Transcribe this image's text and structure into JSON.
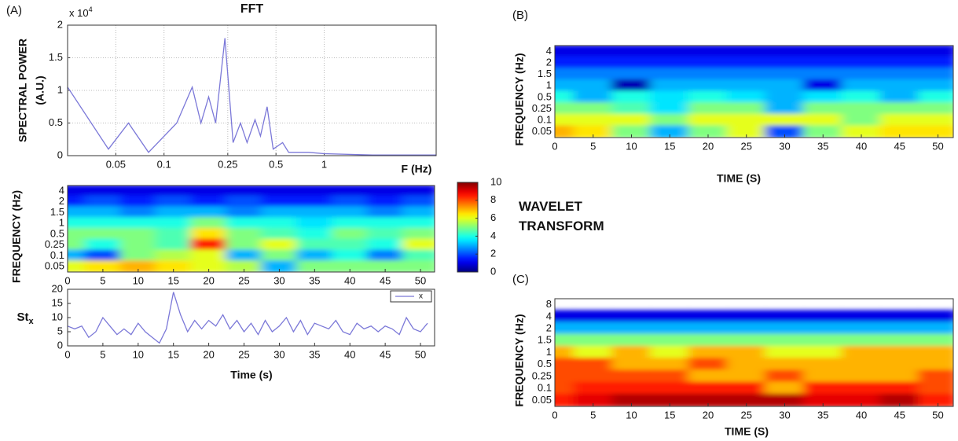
{
  "panels": [
    "(A)",
    "(B)",
    "(C)"
  ],
  "chart_data": [
    {
      "type": "line",
      "title": "FFT",
      "ylabel": [
        "SPECTRAL POWER",
        "(A.U.)"
      ],
      "y_multiplier": "x 10",
      "y_multiplier_exp": "4",
      "xlabel": "F (Hz)",
      "xscale": "log",
      "grid": true,
      "color": "#7b78d8",
      "x": [
        0.025,
        0.045,
        0.06,
        0.08,
        0.12,
        0.15,
        0.17,
        0.19,
        0.21,
        0.24,
        0.27,
        0.3,
        0.33,
        0.37,
        0.4,
        0.44,
        0.48,
        0.55,
        0.6,
        0.8,
        1,
        2,
        5
      ],
      "values": [
        1.05,
        0.1,
        0.5,
        0.05,
        0.5,
        1.05,
        0.5,
        0.9,
        0.5,
        1.8,
        0.2,
        0.5,
        0.2,
        0.55,
        0.3,
        0.75,
        0.1,
        0.2,
        0.05,
        0.05,
        0.03,
        0.01,
        0.01
      ],
      "xlim": [
        0.025,
        5
      ],
      "xticks": [
        0.05,
        0.1,
        0.25,
        0.5,
        1
      ],
      "ylim": [
        0,
        2
      ],
      "yticks": [
        0,
        0.5,
        1,
        1.5,
        2
      ]
    },
    {
      "type": "heatmap",
      "ylabel": "FREQUENCY (Hz)",
      "rows": [
        4,
        2,
        1.5,
        1,
        0.5,
        0.25,
        0.1,
        0.05
      ],
      "x": [
        0,
        5,
        10,
        15,
        20,
        25,
        30,
        35,
        40,
        45,
        50
      ],
      "z": [
        [
          1,
          1,
          1,
          1,
          1,
          1,
          1,
          1,
          1,
          1,
          1
        ],
        [
          1.5,
          2,
          1.5,
          2,
          1.5,
          2,
          1.5,
          1.5,
          2,
          1.5,
          2
        ],
        [
          3,
          3,
          2.5,
          3,
          3,
          2.5,
          3,
          3,
          3,
          2.5,
          3
        ],
        [
          4,
          4,
          4,
          4,
          5,
          4,
          4,
          3.5,
          4,
          4,
          4
        ],
        [
          5,
          5,
          5,
          4.5,
          6.5,
          5,
          4.5,
          4,
          5,
          4.5,
          5
        ],
        [
          5,
          4,
          5,
          4.5,
          8.5,
          5,
          6,
          4.5,
          4.5,
          4,
          6
        ],
        [
          3,
          2,
          5,
          5.5,
          6,
          3,
          5,
          3,
          4,
          2.5,
          4.5
        ],
        [
          6,
          6.5,
          7,
          6.5,
          6,
          5.5,
          3,
          5,
          5,
          5,
          5
        ]
      ],
      "xlim": [
        0,
        52
      ],
      "xticks": [
        0,
        5,
        10,
        15,
        20,
        25,
        30,
        35,
        40,
        45,
        50
      ]
    },
    {
      "type": "colorbar",
      "title": "WAVELET TRANSFORM",
      "colormap": "jet",
      "lim": [
        0,
        10
      ],
      "ticks": [
        0,
        2,
        4,
        6,
        8,
        10
      ]
    },
    {
      "type": "line",
      "ylabel": "St",
      "ylabel_sub": "x",
      "xlabel": "Time (s)",
      "legend": "upper right",
      "x": [
        0,
        1,
        2,
        3,
        4,
        5,
        6,
        7,
        8,
        9,
        10,
        11,
        12,
        13,
        14,
        15,
        16,
        17,
        18,
        19,
        20,
        21,
        22,
        23,
        24,
        25,
        26,
        27,
        28,
        29,
        30,
        31,
        32,
        33,
        34,
        35,
        36,
        37,
        38,
        39,
        40,
        41,
        42,
        43,
        44,
        45,
        46,
        47,
        48,
        49,
        50,
        51
      ],
      "series": [
        {
          "name": "x",
          "color": "#7b78d8",
          "values": [
            7,
            6,
            7,
            3,
            5,
            10,
            7,
            4,
            6,
            4,
            8,
            5,
            3,
            1,
            6,
            19,
            11,
            5,
            9,
            6,
            9,
            7,
            11,
            6,
            9,
            5,
            8,
            4,
            9,
            5,
            7,
            10,
            5,
            9,
            4,
            8,
            7,
            6,
            9,
            5,
            4,
            8,
            6,
            7,
            5,
            7,
            6,
            4,
            10,
            6,
            5,
            8
          ]
        }
      ],
      "xlim": [
        0,
        52
      ],
      "xticks": [
        0,
        5,
        10,
        15,
        20,
        25,
        30,
        35,
        40,
        45,
        50
      ],
      "ylim": [
        0,
        20
      ],
      "yticks": [
        0,
        5,
        10,
        15,
        20
      ]
    },
    {
      "type": "heatmap",
      "ylabel": "FREQUENCY (Hz)",
      "xlabel": "TIME (S)",
      "rows": [
        4,
        2,
        1.5,
        1,
        0.5,
        0.25,
        0.1,
        0.05
      ],
      "x": [
        0,
        5,
        10,
        15,
        20,
        25,
        30,
        35,
        40,
        45,
        50
      ],
      "z": [
        [
          1,
          1,
          1,
          1,
          1,
          1,
          1,
          1,
          1,
          1,
          1
        ],
        [
          1.5,
          1.5,
          1.5,
          1.5,
          1.5,
          1.5,
          1.5,
          1.5,
          1.5,
          1.5,
          1.5
        ],
        [
          2.5,
          2.5,
          2.5,
          2.5,
          2.5,
          2.5,
          2.5,
          2.5,
          2.5,
          2.5,
          2.5
        ],
        [
          3,
          3,
          0.5,
          3,
          3,
          3,
          3,
          1,
          3,
          3,
          3
        ],
        [
          4,
          3,
          4,
          3.5,
          4,
          3.5,
          3,
          3.5,
          4,
          3,
          4
        ],
        [
          5,
          5,
          4.5,
          3.5,
          5,
          5,
          3,
          5,
          5,
          5,
          5
        ],
        [
          6,
          6,
          6,
          5,
          6,
          6,
          6,
          6,
          5,
          6,
          6
        ],
        [
          7,
          6.5,
          5,
          3,
          5,
          6,
          2,
          5,
          6,
          6.5,
          6.5
        ]
      ],
      "xlim": [
        0,
        52
      ],
      "xticks": [
        0,
        5,
        10,
        15,
        20,
        25,
        30,
        35,
        40,
        45,
        50
      ]
    },
    {
      "type": "heatmap",
      "ylabel": "FREQUENCY (Hz)",
      "xlabel": "TIME (S)",
      "rows": [
        8,
        4,
        2,
        1.5,
        1,
        0.5,
        0.25,
        0.1,
        0.05
      ],
      "x": [
        0,
        5,
        10,
        15,
        20,
        25,
        30,
        35,
        40,
        45,
        50
      ],
      "z": [
        [
          null,
          null,
          null,
          null,
          null,
          null,
          null,
          null,
          null,
          null,
          null
        ],
        [
          1,
          1,
          1,
          1,
          1,
          1,
          1,
          1,
          1,
          1,
          1
        ],
        [
          3,
          3,
          3,
          3,
          3,
          3,
          3,
          3,
          3,
          3,
          3
        ],
        [
          5,
          5,
          5,
          5,
          5,
          5,
          5,
          5,
          5,
          5,
          5
        ],
        [
          7,
          6,
          7,
          6,
          7,
          7,
          6,
          6,
          7,
          7,
          7
        ],
        [
          8,
          8,
          7,
          7,
          8,
          7,
          7,
          7,
          7,
          7,
          7
        ],
        [
          8,
          8,
          8,
          8,
          7,
          7,
          8,
          7,
          7,
          7,
          8
        ],
        [
          8,
          8.5,
          8.5,
          8.5,
          8.5,
          8.5,
          7,
          8.5,
          8.5,
          8.5,
          8
        ],
        [
          8.5,
          9,
          9.5,
          9.5,
          9.5,
          9.5,
          9.5,
          9,
          9,
          9.5,
          8.5
        ]
      ],
      "xlim": [
        0,
        52
      ],
      "xticks": [
        0,
        5,
        10,
        15,
        20,
        25,
        30,
        35,
        40,
        45,
        50
      ]
    }
  ]
}
